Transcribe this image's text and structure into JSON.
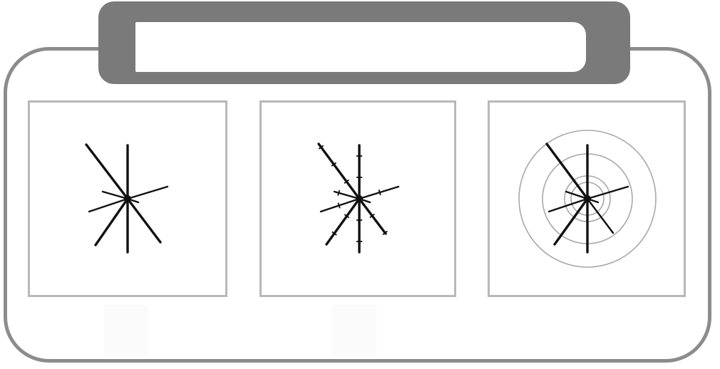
{
  "title": "",
  "panels": [
    {
      "id": "panel-1",
      "caption": "",
      "style": "plain",
      "rays": [
        [
          0,
          75
        ],
        [
          0,
          -75
        ],
        [
          -58,
          -76
        ],
        [
          46,
          61
        ],
        [
          56,
          -17
        ],
        [
          -54,
          18
        ],
        [
          -45,
          65
        ],
        [
          -35,
          -10
        ],
        [
          15,
          5
        ]
      ],
      "rings": []
    },
    {
      "id": "panel-2",
      "caption": "",
      "style": "ticked",
      "rays": [
        [
          0,
          75
        ],
        [
          0,
          -75
        ],
        [
          -57,
          -77
        ],
        [
          37,
          49
        ],
        [
          55,
          -17
        ],
        [
          -54,
          18
        ],
        [
          -46,
          64
        ],
        [
          -35,
          -10
        ],
        [
          15,
          5
        ]
      ],
      "rings": []
    },
    {
      "id": "panel-3",
      "caption": "",
      "style": "rings",
      "rays": [
        [
          0,
          75
        ],
        [
          0,
          -75
        ],
        [
          -57,
          -77
        ],
        [
          36,
          48
        ],
        [
          57,
          -17
        ],
        [
          -54,
          18
        ],
        [
          -46,
          64
        ],
        [
          -30,
          -10
        ],
        [
          15,
          5
        ]
      ],
      "rings": [
        96,
        63,
        32,
        23
      ]
    }
  ],
  "colors": {
    "frame": "#8c8c8c",
    "title_bar": "#7a7a7a",
    "panel_border": "#b8b8b8",
    "ray": "#111111",
    "ring": "#a8a8a8"
  }
}
